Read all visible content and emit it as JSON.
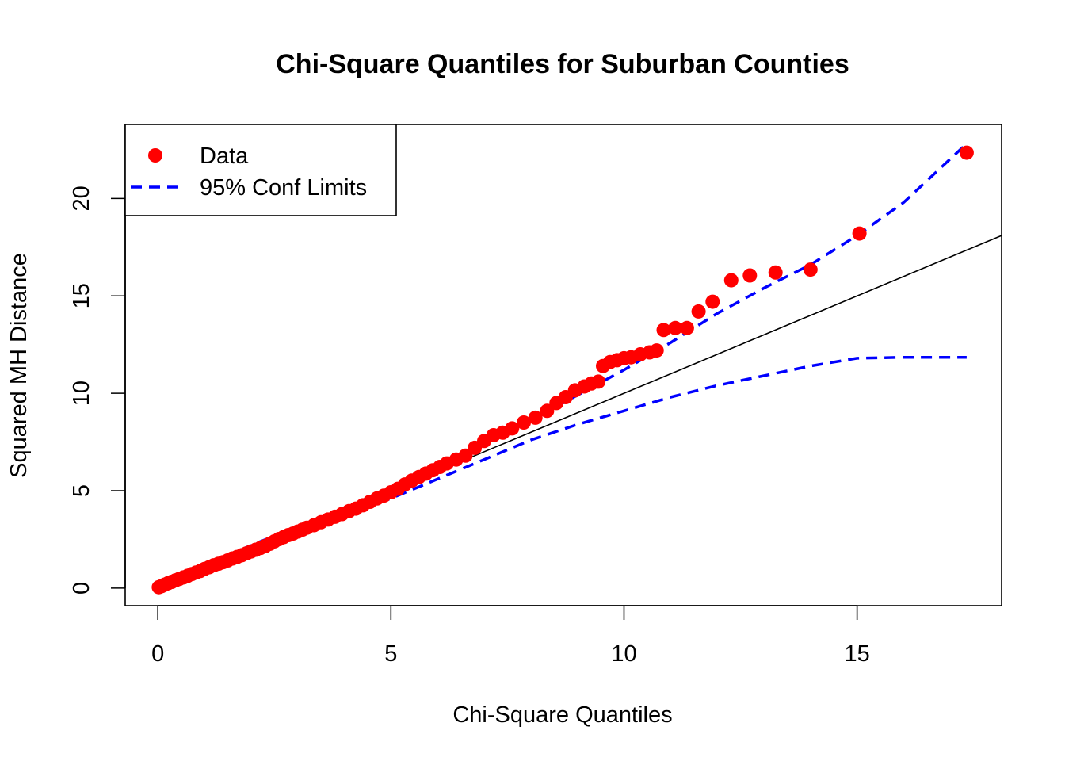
{
  "chart_data": {
    "type": "scatter",
    "title": "Chi-Square Quantiles for Suburban Counties",
    "xlabel": "Chi-Square Quantiles",
    "ylabel": "Squared MH Distance",
    "xlim": [
      -0.7,
      18.1
    ],
    "ylim": [
      -0.9,
      23.8
    ],
    "xticks": [
      0,
      5,
      10,
      15
    ],
    "yticks": [
      0,
      5,
      10,
      15,
      20
    ],
    "grid": false,
    "legend": {
      "position": "top-left",
      "entries": [
        {
          "label": "Data",
          "type": "point",
          "color": "#ff0000"
        },
        {
          "label": "95% Conf Limits",
          "type": "dashed-line",
          "color": "#0000ff"
        }
      ]
    },
    "series": [
      {
        "name": "Data",
        "type": "scatter",
        "color": "#ff0000",
        "points": [
          [
            0.02,
            0.05
          ],
          [
            0.08,
            0.1
          ],
          [
            0.15,
            0.18
          ],
          [
            0.22,
            0.25
          ],
          [
            0.3,
            0.32
          ],
          [
            0.38,
            0.4
          ],
          [
            0.46,
            0.47
          ],
          [
            0.55,
            0.55
          ],
          [
            0.64,
            0.63
          ],
          [
            0.73,
            0.72
          ],
          [
            0.82,
            0.8
          ],
          [
            0.91,
            0.88
          ],
          [
            1.0,
            0.98
          ],
          [
            1.1,
            1.07
          ],
          [
            1.2,
            1.17
          ],
          [
            1.3,
            1.25
          ],
          [
            1.4,
            1.33
          ],
          [
            1.5,
            1.42
          ],
          [
            1.6,
            1.52
          ],
          [
            1.7,
            1.6
          ],
          [
            1.8,
            1.69
          ],
          [
            1.9,
            1.78
          ],
          [
            2.0,
            1.88
          ],
          [
            2.1,
            1.97
          ],
          [
            2.2,
            2.06
          ],
          [
            2.3,
            2.15
          ],
          [
            2.4,
            2.27
          ],
          [
            2.5,
            2.4
          ],
          [
            2.6,
            2.52
          ],
          [
            2.7,
            2.62
          ],
          [
            2.8,
            2.72
          ],
          [
            2.9,
            2.8
          ],
          [
            3.0,
            2.9
          ],
          [
            3.1,
            3.0
          ],
          [
            3.2,
            3.1
          ],
          [
            3.35,
            3.23
          ],
          [
            3.5,
            3.38
          ],
          [
            3.65,
            3.52
          ],
          [
            3.8,
            3.66
          ],
          [
            3.95,
            3.8
          ],
          [
            4.1,
            3.95
          ],
          [
            4.25,
            4.08
          ],
          [
            4.4,
            4.25
          ],
          [
            4.55,
            4.43
          ],
          [
            4.7,
            4.6
          ],
          [
            4.85,
            4.75
          ],
          [
            5.0,
            4.92
          ],
          [
            5.15,
            5.1
          ],
          [
            5.3,
            5.32
          ],
          [
            5.45,
            5.52
          ],
          [
            5.6,
            5.7
          ],
          [
            5.75,
            5.88
          ],
          [
            5.9,
            6.05
          ],
          [
            6.05,
            6.22
          ],
          [
            6.2,
            6.4
          ],
          [
            6.4,
            6.6
          ],
          [
            6.6,
            6.8
          ],
          [
            6.8,
            7.2
          ],
          [
            7.0,
            7.55
          ],
          [
            7.2,
            7.85
          ],
          [
            7.4,
            7.98
          ],
          [
            7.6,
            8.2
          ],
          [
            7.85,
            8.5
          ],
          [
            8.1,
            8.75
          ],
          [
            8.35,
            9.1
          ],
          [
            8.55,
            9.5
          ],
          [
            8.75,
            9.8
          ],
          [
            8.95,
            10.15
          ],
          [
            9.15,
            10.35
          ],
          [
            9.3,
            10.5
          ],
          [
            9.45,
            10.6
          ],
          [
            9.55,
            11.4
          ],
          [
            9.7,
            11.6
          ],
          [
            9.85,
            11.7
          ],
          [
            10.0,
            11.8
          ],
          [
            10.15,
            11.85
          ],
          [
            10.35,
            12.0
          ],
          [
            10.55,
            12.1
          ],
          [
            10.7,
            12.2
          ],
          [
            10.85,
            13.25
          ],
          [
            11.1,
            13.35
          ],
          [
            11.35,
            13.35
          ],
          [
            11.6,
            14.2
          ],
          [
            11.9,
            14.7
          ],
          [
            12.3,
            15.8
          ],
          [
            12.7,
            16.05
          ],
          [
            13.25,
            16.2
          ],
          [
            14.0,
            16.35
          ],
          [
            15.05,
            18.2
          ],
          [
            17.35,
            22.35
          ]
        ]
      },
      {
        "name": "",
        "type": "line",
        "color": "#000000",
        "points": [
          [
            0,
            0
          ],
          [
            18.1,
            18.1
          ]
        ]
      },
      {
        "name": "95% Conf Limits",
        "type": "dashed-line",
        "color": "#0000ff",
        "points": [
          [
            0.0,
            0.05
          ],
          [
            0.5,
            0.55
          ],
          [
            1.0,
            1.1
          ],
          [
            2.0,
            2.2
          ],
          [
            3.0,
            3.15
          ],
          [
            4.0,
            4.1
          ],
          [
            5.0,
            5.1
          ],
          [
            6.0,
            6.2
          ],
          [
            7.0,
            7.4
          ],
          [
            8.0,
            8.6
          ],
          [
            9.0,
            9.9
          ],
          [
            10.0,
            11.2
          ],
          [
            11.0,
            12.6
          ],
          [
            12.0,
            14.1
          ],
          [
            13.0,
            15.4
          ],
          [
            14.0,
            16.6
          ],
          [
            15.0,
            18.1
          ],
          [
            16.0,
            19.8
          ],
          [
            17.3,
            22.7
          ]
        ]
      },
      {
        "name": "95% Conf Limits",
        "type": "dashed-line",
        "color": "#0000ff",
        "points": [
          [
            0.0,
            0.0
          ],
          [
            1.0,
            0.9
          ],
          [
            2.0,
            1.8
          ],
          [
            3.0,
            2.7
          ],
          [
            4.0,
            3.7
          ],
          [
            5.0,
            4.6
          ],
          [
            6.0,
            5.6
          ],
          [
            7.0,
            6.6
          ],
          [
            8.0,
            7.6
          ],
          [
            9.0,
            8.4
          ],
          [
            10.0,
            9.1
          ],
          [
            11.0,
            9.8
          ],
          [
            12.0,
            10.4
          ],
          [
            13.0,
            10.9
          ],
          [
            14.0,
            11.4
          ],
          [
            15.0,
            11.8
          ],
          [
            16.0,
            11.85
          ],
          [
            17.35,
            11.85
          ]
        ]
      }
    ]
  }
}
